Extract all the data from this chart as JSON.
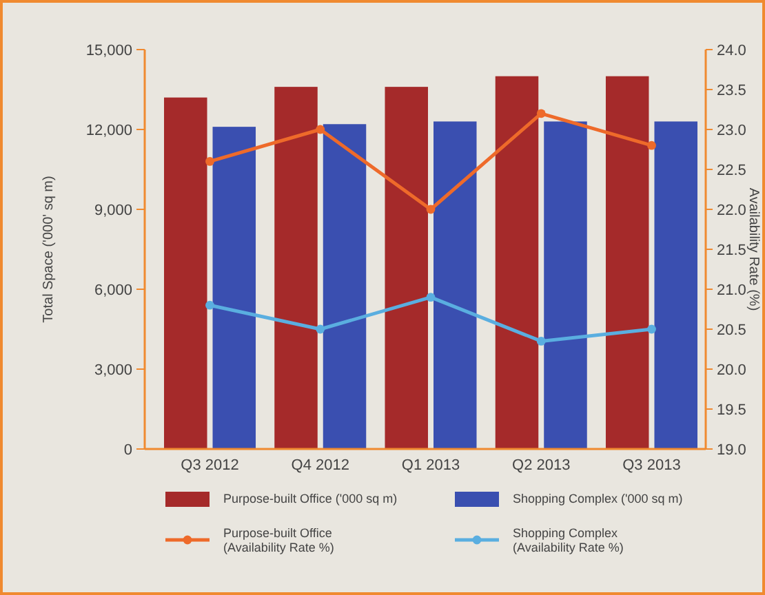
{
  "chart_data": {
    "type": "bar",
    "categories": [
      "Q3 2012",
      "Q4 2012",
      "Q1 2013",
      "Q2 2013",
      "Q3 2013"
    ],
    "ylabel": "Total Space ('000' sq m)",
    "y2label": "Availability Rate (%)",
    "ylim": [
      0,
      15000
    ],
    "yticks": [
      {
        "value": 0,
        "label": "0"
      },
      {
        "value": 3000,
        "label": "3,000"
      },
      {
        "value": 6000,
        "label": "6,000"
      },
      {
        "value": 9000,
        "label": "9,000"
      },
      {
        "value": 12000,
        "label": "12,000"
      },
      {
        "value": 15000,
        "label": "15,000"
      }
    ],
    "y2lim": [
      19,
      24
    ],
    "y2ticks": [
      {
        "value": 19,
        "label": "19.0"
      },
      {
        "value": 19.5,
        "label": "19.5"
      },
      {
        "value": 20,
        "label": "20.0"
      },
      {
        "value": 20.5,
        "label": "20.5"
      },
      {
        "value": 21,
        "label": "21.0"
      },
      {
        "value": 21.5,
        "label": "21.5"
      },
      {
        "value": 22,
        "label": "22.0"
      },
      {
        "value": 22.5,
        "label": "22.5"
      },
      {
        "value": 23,
        "label": "23.0"
      },
      {
        "value": 23.5,
        "label": "23.5"
      },
      {
        "value": 24,
        "label": "24.0"
      }
    ],
    "series": [
      {
        "name": "Purpose-built Office ('000 sq m)",
        "color": "#a52a2a",
        "values": [
          13200,
          13600,
          13600,
          14000,
          14000
        ]
      },
      {
        "name": "Shopping Complex ('000 sq m)",
        "color": "#3a4fb0",
        "values": [
          12100,
          12200,
          12300,
          12300,
          12300
        ]
      },
      {
        "name": "Purpose-built Office\n(Availability Rate %)",
        "type": "line",
        "axis": "y2",
        "color": "#ee6a2a",
        "values": [
          22.6,
          23.0,
          22.0,
          23.2,
          22.8
        ]
      },
      {
        "name": "Shopping Complex\n(Availability Rate %)",
        "type": "line",
        "axis": "y2",
        "color": "#5aaee0",
        "values": [
          20.8,
          20.5,
          20.9,
          20.35,
          20.5
        ]
      }
    ],
    "marker": "circle",
    "grid": false,
    "legend": "bottom"
  }
}
